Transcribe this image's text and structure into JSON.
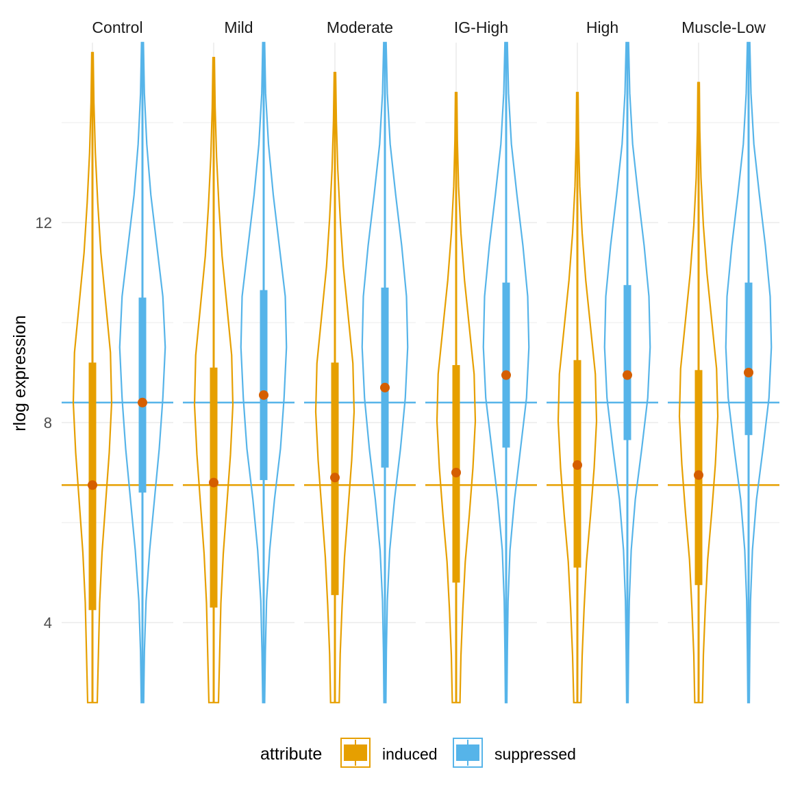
{
  "chart_data": {
    "type": "violin",
    "title": "",
    "ylabel": "rlog expression",
    "xlabel": "",
    "ylim": [
      2.4,
      15.6
    ],
    "yticks": [
      4,
      8,
      12
    ],
    "grid": true,
    "legend": {
      "title": "attribute",
      "position": "bottom",
      "entries": [
        "induced",
        "suppressed"
      ]
    },
    "colors": {
      "induced": "#E69F00",
      "suppressed": "#56B4E9",
      "median_point": "#D55E00",
      "grid": "#EBEBEB"
    },
    "reference_lines": [
      {
        "series": "induced",
        "y": 6.75
      },
      {
        "series": "suppressed",
        "y": 8.4
      }
    ],
    "facets": [
      {
        "name": "Control",
        "induced": {
          "min": 2.4,
          "max": 15.4,
          "q1": 4.25,
          "median": 6.75,
          "q3": 9.2,
          "violin_halfwidths": [
            0.2,
            0.25,
            0.3,
            0.4,
            0.55,
            0.7,
            0.8,
            0.75,
            0.55,
            0.35,
            0.22,
            0.12,
            0.06,
            0.03
          ]
        },
        "suppressed": {
          "min": 2.4,
          "max": 15.6,
          "q1": 6.6,
          "median": 8.4,
          "q3": 10.5,
          "violin_halfwidths": [
            0.05,
            0.08,
            0.15,
            0.3,
            0.5,
            0.7,
            0.85,
            0.95,
            0.85,
            0.6,
            0.35,
            0.18,
            0.08,
            0.04
          ]
        }
      },
      {
        "name": "Mild",
        "induced": {
          "min": 2.4,
          "max": 15.3,
          "q1": 4.3,
          "median": 6.8,
          "q3": 9.1,
          "violin_halfwidths": [
            0.2,
            0.25,
            0.3,
            0.4,
            0.55,
            0.7,
            0.8,
            0.75,
            0.55,
            0.35,
            0.22,
            0.12,
            0.06,
            0.03
          ]
        },
        "suppressed": {
          "min": 2.4,
          "max": 15.6,
          "q1": 6.85,
          "median": 8.55,
          "q3": 10.65,
          "violin_halfwidths": [
            0.04,
            0.07,
            0.12,
            0.25,
            0.45,
            0.7,
            0.85,
            0.95,
            0.9,
            0.65,
            0.4,
            0.2,
            0.08,
            0.04
          ]
        }
      },
      {
        "name": "Moderate",
        "induced": {
          "min": 2.4,
          "max": 15.0,
          "q1": 4.55,
          "median": 6.9,
          "q3": 9.2,
          "violin_halfwidths": [
            0.18,
            0.22,
            0.3,
            0.4,
            0.55,
            0.7,
            0.8,
            0.75,
            0.55,
            0.35,
            0.22,
            0.12,
            0.06,
            0.03
          ]
        },
        "suppressed": {
          "min": 2.4,
          "max": 15.6,
          "q1": 7.1,
          "median": 8.7,
          "q3": 10.7,
          "violin_halfwidths": [
            0.04,
            0.06,
            0.1,
            0.2,
            0.4,
            0.65,
            0.85,
            0.95,
            0.9,
            0.7,
            0.45,
            0.22,
            0.1,
            0.05
          ]
        }
      },
      {
        "name": "IG-High",
        "induced": {
          "min": 2.4,
          "max": 14.6,
          "q1": 4.8,
          "median": 7.0,
          "q3": 9.15,
          "violin_halfwidths": [
            0.16,
            0.2,
            0.28,
            0.38,
            0.55,
            0.7,
            0.8,
            0.75,
            0.55,
            0.35,
            0.2,
            0.1,
            0.05,
            0.03
          ]
        },
        "suppressed": {
          "min": 2.4,
          "max": 15.6,
          "q1": 7.5,
          "median": 8.95,
          "q3": 10.8,
          "violin_halfwidths": [
            0.03,
            0.05,
            0.08,
            0.16,
            0.35,
            0.6,
            0.85,
            0.95,
            0.9,
            0.7,
            0.45,
            0.22,
            0.1,
            0.05
          ]
        }
      },
      {
        "name": "High",
        "induced": {
          "min": 2.4,
          "max": 14.6,
          "q1": 5.1,
          "median": 7.15,
          "q3": 9.25,
          "violin_halfwidths": [
            0.15,
            0.2,
            0.28,
            0.38,
            0.55,
            0.7,
            0.8,
            0.75,
            0.55,
            0.35,
            0.2,
            0.1,
            0.05,
            0.03
          ]
        },
        "suppressed": {
          "min": 2.4,
          "max": 15.6,
          "q1": 7.65,
          "median": 8.95,
          "q3": 10.75,
          "violin_halfwidths": [
            0.03,
            0.05,
            0.08,
            0.16,
            0.33,
            0.6,
            0.85,
            0.95,
            0.9,
            0.7,
            0.45,
            0.22,
            0.1,
            0.05
          ]
        }
      },
      {
        "name": "Muscle-Low",
        "induced": {
          "min": 2.4,
          "max": 14.8,
          "q1": 4.75,
          "median": 6.95,
          "q3": 9.05,
          "violin_halfwidths": [
            0.16,
            0.2,
            0.28,
            0.38,
            0.55,
            0.7,
            0.8,
            0.75,
            0.55,
            0.35,
            0.2,
            0.1,
            0.05,
            0.03
          ]
        },
        "suppressed": {
          "min": 2.4,
          "max": 15.6,
          "q1": 7.75,
          "median": 9.0,
          "q3": 10.8,
          "violin_halfwidths": [
            0.03,
            0.05,
            0.08,
            0.16,
            0.33,
            0.6,
            0.85,
            0.95,
            0.9,
            0.7,
            0.45,
            0.22,
            0.1,
            0.05
          ]
        }
      }
    ]
  }
}
